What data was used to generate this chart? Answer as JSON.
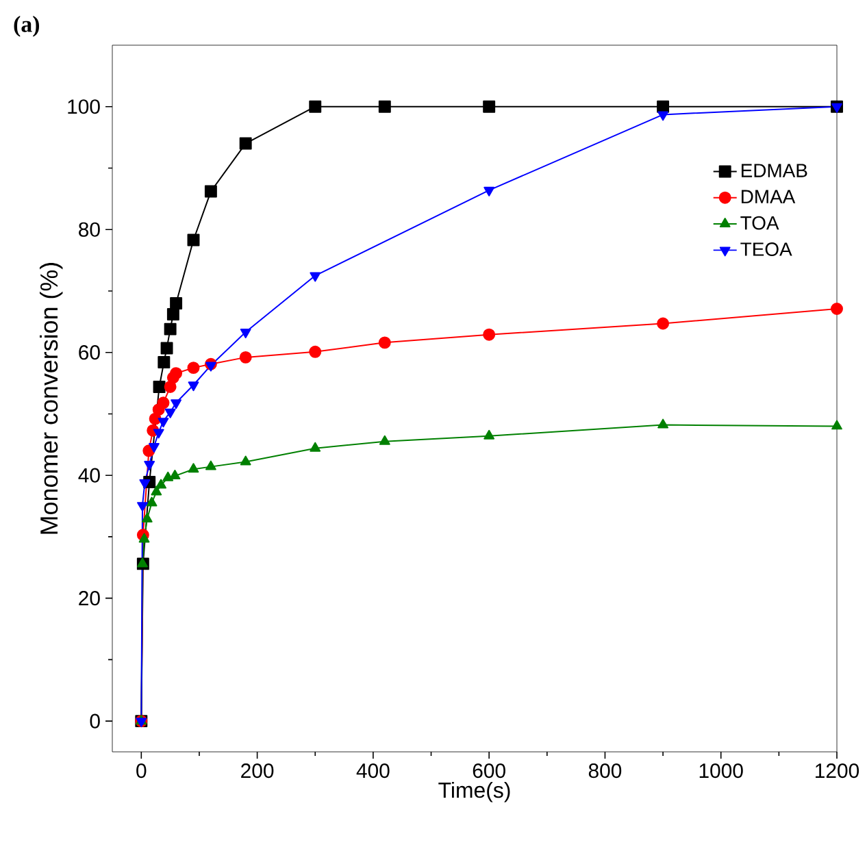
{
  "chart_data": {
    "type": "line",
    "title": "(a)",
    "xlabel": "Time(s)",
    "ylabel": "Monomer conversion (%)",
    "xlim": [
      -50,
      1200
    ],
    "ylim": [
      -5,
      110
    ],
    "xticks": [
      0,
      200,
      400,
      600,
      800,
      1000,
      1200
    ],
    "yticks": [
      0,
      20,
      40,
      60,
      80,
      100
    ],
    "legend": "top right",
    "grid": false,
    "line_style": "solid",
    "series": [
      {
        "name": "EDMAB",
        "color": "#000000",
        "marker": "square",
        "x": [
          0,
          3,
          14,
          31,
          39,
          44,
          50,
          55,
          60,
          90,
          120,
          180,
          300,
          420,
          600,
          900,
          1200
        ],
        "values": [
          0,
          25.6,
          38.9,
          54.4,
          58.4,
          60.7,
          63.8,
          66.2,
          68,
          78.3,
          86.2,
          94,
          100,
          100,
          100,
          100,
          100
        ]
      },
      {
        "name": "DMAA",
        "color": "#ff0000",
        "marker": "circle",
        "x": [
          0,
          3,
          13,
          20,
          24,
          30,
          38,
          50,
          55,
          60,
          90,
          120,
          180,
          300,
          420,
          600,
          900,
          1200
        ],
        "values": [
          0,
          30.3,
          44,
          47.3,
          49.2,
          50.7,
          51.8,
          54.4,
          55.9,
          56.6,
          57.5,
          58.1,
          59.2,
          60.1,
          61.6,
          62.9,
          64.7,
          67.1
        ]
      },
      {
        "name": "TOA",
        "color": "#008000",
        "marker": "triangle",
        "x": [
          0,
          2,
          5,
          10,
          18,
          26,
          34,
          46,
          58,
          90,
          120,
          180,
          300,
          420,
          600,
          900,
          1200
        ],
        "values": [
          0,
          25.6,
          29.6,
          32.9,
          35.5,
          37.3,
          38.4,
          39.6,
          39.9,
          41,
          41.4,
          42.2,
          44.4,
          45.5,
          46.4,
          48.2,
          48
        ]
      },
      {
        "name": "TEOA",
        "color": "#0000ff",
        "marker": "triangle down",
        "x": [
          0,
          2,
          6,
          14,
          22,
          30,
          38,
          50,
          60,
          90,
          120,
          180,
          300,
          600,
          900,
          1200
        ],
        "values": [
          0,
          35.1,
          38.8,
          41.8,
          44.7,
          47,
          48.8,
          50.3,
          51.8,
          54.7,
          57.9,
          63.3,
          72.5,
          86.4,
          98.7,
          100
        ]
      }
    ]
  }
}
